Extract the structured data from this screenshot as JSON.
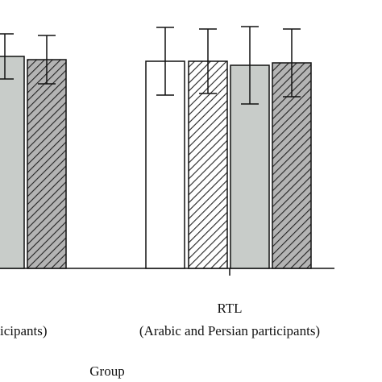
{
  "chart_data": {
    "type": "bar",
    "x_label": "Group",
    "categories": [
      null,
      "RTL"
    ],
    "category_sublabels": [
      "icipants)",
      "(Arabic and Persian participants)"
    ],
    "ylim": [
      0,
      300
    ],
    "series": [
      {
        "color": "#ffffff",
        "hatch": false,
        "values": [
          null,
          257
        ],
        "errors": [
          null,
          42
        ]
      },
      {
        "color": "#ffffff",
        "hatch": true,
        "values": [
          null,
          257
        ],
        "errors": [
          null,
          40
        ]
      },
      {
        "color": "#c8ccc9",
        "hatch": false,
        "values": [
          263,
          252
        ],
        "errors": [
          28,
          48
        ]
      },
      {
        "color": "#b4b4b4",
        "hatch": true,
        "values": [
          259,
          255
        ],
        "errors": [
          30,
          42
        ]
      }
    ]
  }
}
